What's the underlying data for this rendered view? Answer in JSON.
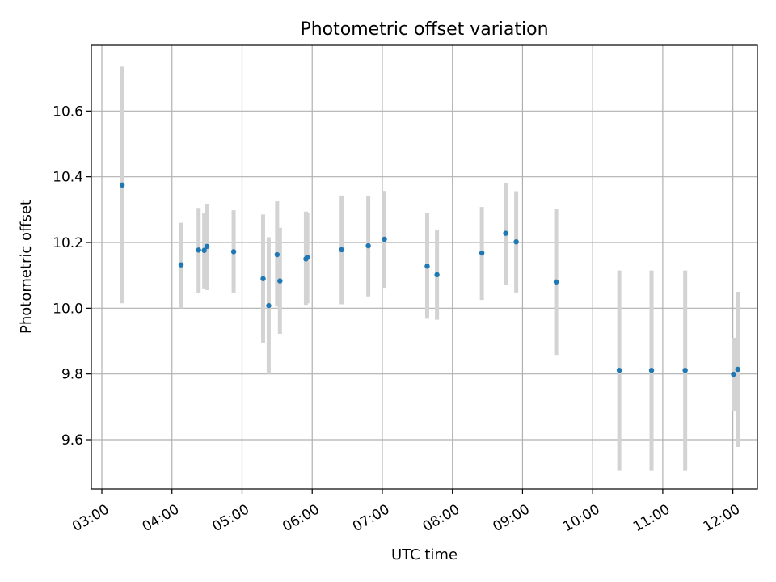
{
  "chart_data": {
    "type": "scatter",
    "title": "Photometric offset variation",
    "xlabel": "UTC time",
    "ylabel": "Photometric offset",
    "x_unit": "hours UTC",
    "xlim": [
      2.85,
      12.35
    ],
    "ylim": [
      9.45,
      10.8
    ],
    "x_ticks": [
      3,
      4,
      5,
      6,
      7,
      8,
      9,
      10,
      11,
      12
    ],
    "x_tick_labels": [
      "03:00",
      "04:00",
      "05:00",
      "06:00",
      "07:00",
      "08:00",
      "09:00",
      "10:00",
      "11:00",
      "12:00"
    ],
    "y_ticks": [
      9.6,
      9.8,
      10.0,
      10.2,
      10.4,
      10.6
    ],
    "y_tick_labels": [
      "9.6",
      "9.8",
      "10.0",
      "10.2",
      "10.4",
      "10.6"
    ],
    "grid": true,
    "colors": {
      "point": "#1f77b4",
      "errorbar": "#d3d3d3",
      "grid": "#b0b0b0"
    },
    "points": [
      {
        "x": 3.29,
        "y": 10.375,
        "lo": 10.015,
        "hi": 10.735
      },
      {
        "x": 4.13,
        "y": 10.132,
        "lo": 10.0,
        "hi": 10.26
      },
      {
        "x": 4.38,
        "y": 10.177,
        "lo": 10.045,
        "hi": 10.305
      },
      {
        "x": 4.46,
        "y": 10.176,
        "lo": 10.06,
        "hi": 10.29
      },
      {
        "x": 4.5,
        "y": 10.188,
        "lo": 10.055,
        "hi": 10.318
      },
      {
        "x": 4.88,
        "y": 10.172,
        "lo": 10.045,
        "hi": 10.298
      },
      {
        "x": 5.3,
        "y": 10.09,
        "lo": 9.895,
        "hi": 10.285
      },
      {
        "x": 5.38,
        "y": 10.008,
        "lo": 9.8,
        "hi": 10.216
      },
      {
        "x": 5.5,
        "y": 10.163,
        "lo": 10.005,
        "hi": 10.325
      },
      {
        "x": 5.54,
        "y": 10.083,
        "lo": 9.922,
        "hi": 10.245
      },
      {
        "x": 5.91,
        "y": 10.15,
        "lo": 10.01,
        "hi": 10.294
      },
      {
        "x": 5.93,
        "y": 10.155,
        "lo": 10.015,
        "hi": 10.29
      },
      {
        "x": 6.42,
        "y": 10.178,
        "lo": 10.012,
        "hi": 10.343
      },
      {
        "x": 6.8,
        "y": 10.19,
        "lo": 10.036,
        "hi": 10.343
      },
      {
        "x": 7.03,
        "y": 10.21,
        "lo": 10.062,
        "hi": 10.357
      },
      {
        "x": 7.64,
        "y": 10.128,
        "lo": 9.968,
        "hi": 10.29
      },
      {
        "x": 7.78,
        "y": 10.102,
        "lo": 9.965,
        "hi": 10.239
      },
      {
        "x": 8.42,
        "y": 10.168,
        "lo": 10.025,
        "hi": 10.308
      },
      {
        "x": 8.76,
        "y": 10.228,
        "lo": 10.072,
        "hi": 10.382
      },
      {
        "x": 8.91,
        "y": 10.202,
        "lo": 10.048,
        "hi": 10.356
      },
      {
        "x": 9.48,
        "y": 10.08,
        "lo": 9.858,
        "hi": 10.302
      },
      {
        "x": 10.38,
        "y": 9.811,
        "lo": 9.505,
        "hi": 10.115
      },
      {
        "x": 10.84,
        "y": 9.811,
        "lo": 9.505,
        "hi": 10.115
      },
      {
        "x": 11.32,
        "y": 9.811,
        "lo": 9.505,
        "hi": 10.115
      },
      {
        "x": 12.01,
        "y": 9.799,
        "lo": 9.688,
        "hi": 9.91
      },
      {
        "x": 12.07,
        "y": 9.814,
        "lo": 9.578,
        "hi": 10.05
      }
    ]
  }
}
